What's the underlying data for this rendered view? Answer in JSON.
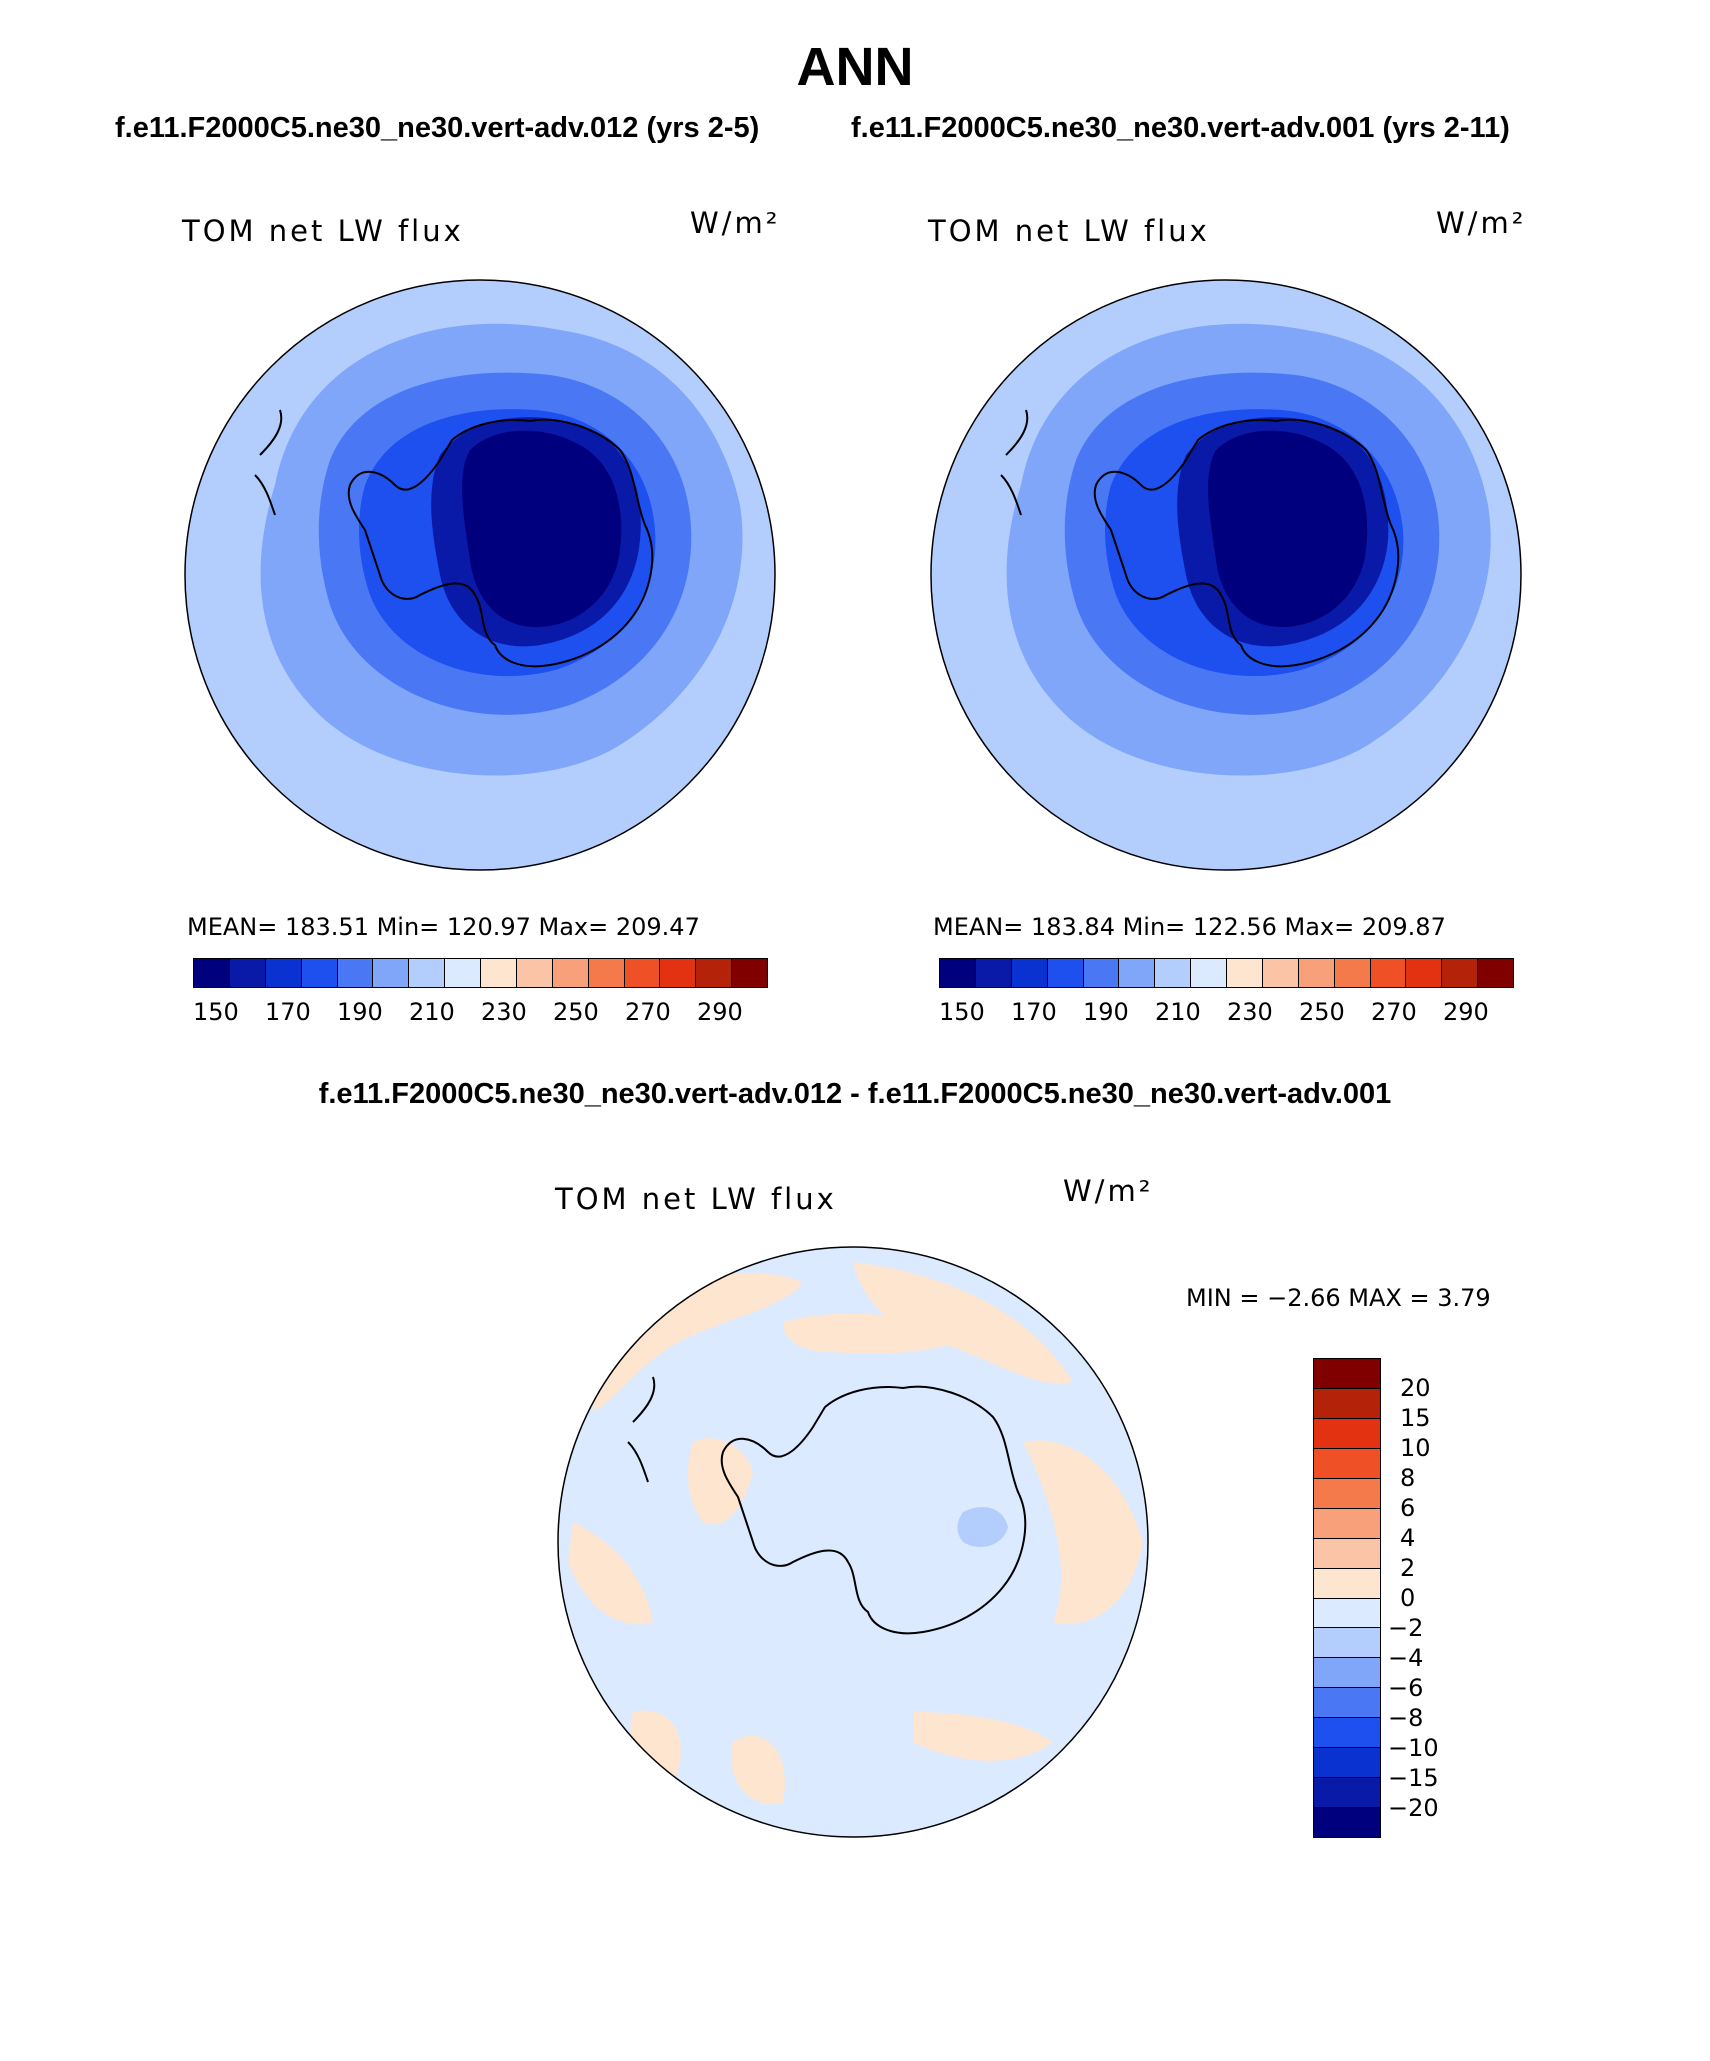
{
  "figure": {
    "title": "ANN",
    "case1_subtitle": "f.e11.F2000C5.ne30_ne30.vert-adv.012 (yrs 2-5)",
    "case2_subtitle": "f.e11.F2000C5.ne30_ne30.vert-adv.001 (yrs 2-11)",
    "diff_subtitle": "f.e11.F2000C5.ne30_ne30.vert-adv.012 - f.e11.F2000C5.ne30_ne30.vert-adv.001"
  },
  "panels": [
    {
      "variable": "TOM net LW flux",
      "units": "W/m²",
      "stats": "MEAN= 183.51   Min= 120.97   Max= 209.47",
      "colorbar_ticks": [
        "150",
        "170",
        "190",
        "210",
        "230",
        "250",
        "270",
        "290"
      ]
    },
    {
      "variable": "TOM net LW flux",
      "units": "W/m²",
      "stats": "MEAN= 183.84   Min= 122.56   Max= 209.87",
      "colorbar_ticks": [
        "150",
        "170",
        "190",
        "210",
        "230",
        "250",
        "270",
        "290"
      ]
    },
    {
      "variable": "TOM net LW flux",
      "units": "W/m²",
      "stats": "MIN =   −2.66 MAX =     3.79",
      "colorbar_ticks": [
        "20",
        "15",
        "10",
        "8",
        "6",
        "4",
        "2",
        "0",
        "−2",
        "−4",
        "−6",
        "−8",
        "−10",
        "−15",
        "−20"
      ]
    }
  ],
  "colors": {
    "abs_scale": [
      "#00007f",
      "#0a1aa8",
      "#0a32d0",
      "#1e50f0",
      "#4a78f5",
      "#80a6fa",
      "#b3cdfd",
      "#dbeaff",
      "#fde5d0",
      "#fbc4a6",
      "#f8a07a",
      "#f47a4c",
      "#ef5026",
      "#e23212",
      "#b5220a",
      "#800000"
    ],
    "diff_scale": [
      "#800000",
      "#b5220a",
      "#e23212",
      "#ef5026",
      "#f47a4c",
      "#f8a07a",
      "#fbc4a6",
      "#fde5d0",
      "#dbeaff",
      "#b3cdfd",
      "#80a6fa",
      "#4a78f5",
      "#1e50f0",
      "#0a32d0",
      "#0a1aa8",
      "#00007f"
    ],
    "ocean_outer": "#b3cdfd",
    "ocean_mid": "#80a6fa",
    "coast_band": "#4a78f5",
    "shelf": "#1e50f0",
    "plateau_edge": "#0a1aa8",
    "plateau": "#00007f",
    "diff_neg": "#dbeaff",
    "diff_pos": "#fde5d0",
    "diff_neg2": "#b3cdfd"
  }
}
